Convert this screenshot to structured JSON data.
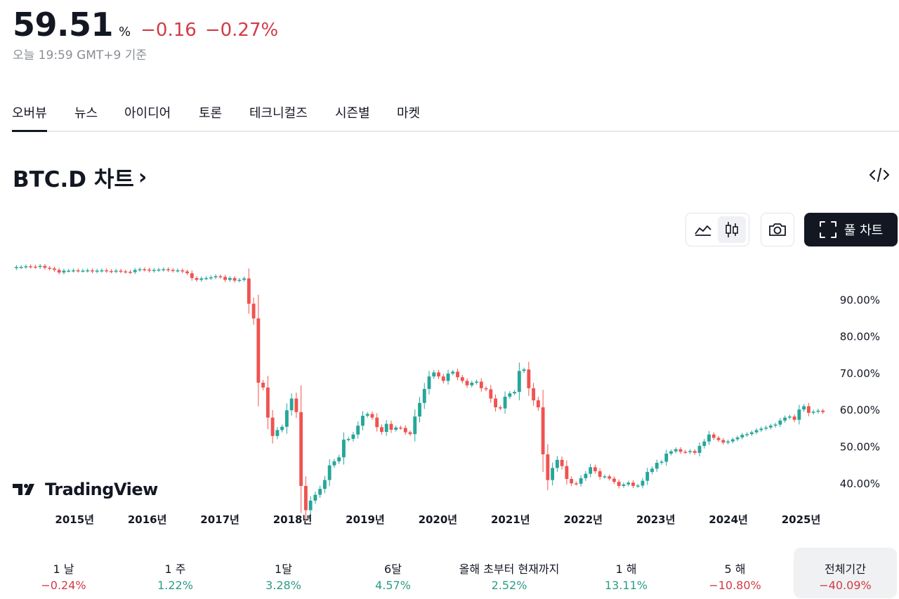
{
  "header": {
    "price": "59.51",
    "unit": "%",
    "change_abs": "−0.16",
    "change_pct": "−0.27%",
    "as_of": "오늘 19:59 GMT+9 기준"
  },
  "tabs": [
    {
      "label": "오버뷰",
      "active": true
    },
    {
      "label": "뉴스"
    },
    {
      "label": "아이디어"
    },
    {
      "label": "토론"
    },
    {
      "label": "테크니컬즈"
    },
    {
      "label": "시즌별"
    },
    {
      "label": "마켓"
    }
  ],
  "chart_header": {
    "title": "BTC.D 차트",
    "chevron": "›",
    "embed_icon": "code-embed-icon",
    "full_chart_label": "풀 차트"
  },
  "toolbar": {
    "area_icon": "area-chart-icon",
    "candle_icon": "candlestick-icon",
    "camera_icon": "camera-icon",
    "fullscreen_icon": "fullscreen-icon",
    "active_style": "candles"
  },
  "logo": {
    "text": "TradingView"
  },
  "colors": {
    "up": "#26a69a",
    "down": "#ef5350",
    "text": "#131722",
    "negative_text": "#d13b47",
    "positive_text": "#2a9c86"
  },
  "chart_data": {
    "type": "candlestick",
    "interval": "1M",
    "y_axis": {
      "range": [
        35,
        100
      ],
      "ticks": [
        "90.00%",
        "80.00%",
        "70.00%",
        "60.00%",
        "50.00%",
        "40.00%"
      ],
      "tick_values": [
        90,
        80,
        70,
        60,
        50,
        40
      ],
      "position": "right"
    },
    "x_axis": {
      "labels": [
        "2015년",
        "2016년",
        "2017년",
        "2018년",
        "2019년",
        "2020년",
        "2021년",
        "2022년",
        "2023년",
        "2024년",
        "2025년"
      ],
      "label_years": [
        2015,
        2016,
        2017,
        2018,
        2019,
        2020,
        2021,
        2022,
        2023,
        2024,
        2025
      ],
      "start": "2014-03",
      "end": "2025-05"
    },
    "close": [
      99.0,
      99.0,
      99.2,
      99.1,
      99.0,
      99.3,
      98.8,
      98.6,
      98.2,
      97.5,
      98.0,
      98.0,
      98.1,
      98.0,
      98.0,
      98.1,
      97.8,
      98.0,
      98.1,
      97.9,
      97.8,
      98.0,
      97.8,
      97.7,
      97.6,
      98.2,
      98.4,
      98.3,
      98.0,
      98.2,
      98.3,
      98.4,
      98.2,
      98.0,
      98.1,
      97.8,
      97.3,
      96.0,
      95.5,
      95.9,
      96.0,
      96.2,
      96.5,
      96.3,
      95.5,
      96.0,
      95.3,
      95.5,
      95.9,
      89.0,
      85.0,
      67.5,
      66.2,
      58.0,
      53.0,
      54.6,
      55.5,
      60.0,
      63.2,
      59.5,
      39.4,
      32.8,
      35.4,
      37.0,
      38.6,
      41.0,
      45.0,
      46.1,
      47.2,
      52.0,
      52.2,
      53.4,
      55.8,
      58.5,
      59.0,
      58.0,
      55.4,
      54.1,
      56.3,
      54.7,
      55.3,
      55.2,
      54.0,
      53.5,
      58.3,
      62.0,
      65.8,
      69.2,
      70.3,
      69.2,
      68.0,
      70.0,
      70.5,
      69.0,
      68.0,
      66.8,
      67.5,
      67.8,
      66.0,
      65.7,
      63.2,
      60.8,
      60.5,
      63.7,
      64.6,
      65.0,
      70.7,
      71.1,
      66.0,
      62.7,
      60.8,
      48.0,
      41.0,
      44.3,
      46.5,
      44.8,
      41.3,
      40.1,
      40.0,
      41.5,
      42.7,
      44.5,
      43.4,
      41.9,
      42.0,
      41.4,
      40.5,
      39.4,
      39.8,
      40.3,
      39.4,
      39.5,
      40.8,
      43.2,
      44.1,
      45.7,
      46.0,
      48.2,
      48.8,
      49.4,
      48.7,
      48.6,
      48.9,
      48.4,
      50.3,
      51.5,
      53.4,
      52.5,
      51.9,
      51.2,
      51.5,
      52.1,
      52.6,
      53.3,
      53.5,
      54.0,
      54.6,
      55.0,
      55.3,
      55.8,
      56.1,
      57.2,
      58.0,
      58.3,
      57.4,
      60.2,
      61.1,
      59.3,
      59.6,
      59.9,
      59.5
    ]
  },
  "periods": [
    {
      "label": "1 날",
      "value": "−0.24%",
      "trend": "neg"
    },
    {
      "label": "1 주",
      "value": "1.22%",
      "trend": "pos"
    },
    {
      "label": "1달",
      "value": "3.28%",
      "trend": "pos"
    },
    {
      "label": "6달",
      "value": "4.57%",
      "trend": "pos"
    },
    {
      "label": "올해 초부터 현재까지",
      "value": "2.52%",
      "trend": "pos"
    },
    {
      "label": "1 해",
      "value": "13.11%",
      "trend": "pos"
    },
    {
      "label": "5 해",
      "value": "−10.80%",
      "trend": "neg"
    },
    {
      "label": "전체기간",
      "value": "−40.09%",
      "trend": "neg",
      "active": true
    }
  ]
}
